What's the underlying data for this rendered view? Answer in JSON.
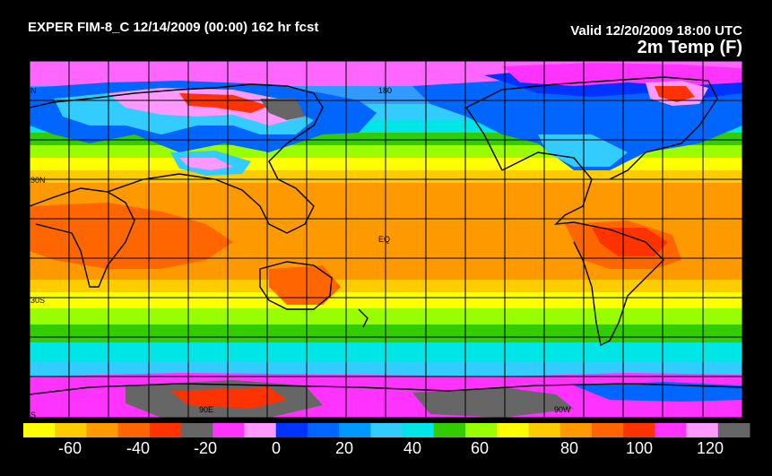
{
  "header": {
    "run": "EXPER FIM-8_C 12/14/2009 (00:00) 162 hr fcst",
    "valid": "Valid 12/20/2009 18:00 UTC",
    "variable": "2m Temp (F)"
  },
  "map": {
    "lat_labels": [
      "N",
      "30N",
      "EQ",
      "30S",
      "S"
    ],
    "lon_labels": [
      "90E",
      "180",
      "90W"
    ],
    "grid_lines": true,
    "projection": "cylindrical equidistant, centered 180",
    "field_colors_note": "polar regions cold (pink/purple/gray), tropics warm (orange/red)"
  },
  "colorbar": {
    "tick_labels": [
      "-60",
      "-40",
      "-20",
      "0",
      "20",
      "40",
      "60",
      "80",
      "100",
      "120"
    ],
    "colors": [
      "#ffff00",
      "#ffcc00",
      "#ff9900",
      "#ff6600",
      "#ff3300",
      "#666666",
      "#ff33ff",
      "#ff99ff",
      "#0033ff",
      "#0066ff",
      "#0099ff",
      "#33ccff",
      "#00e5e5",
      "#33cc00",
      "#99ff00",
      "#ffff00",
      "#ffcc00",
      "#ff9900",
      "#ff6600",
      "#ff3300",
      "#ff33ff",
      "#ff99ff",
      "#666666"
    ]
  }
}
